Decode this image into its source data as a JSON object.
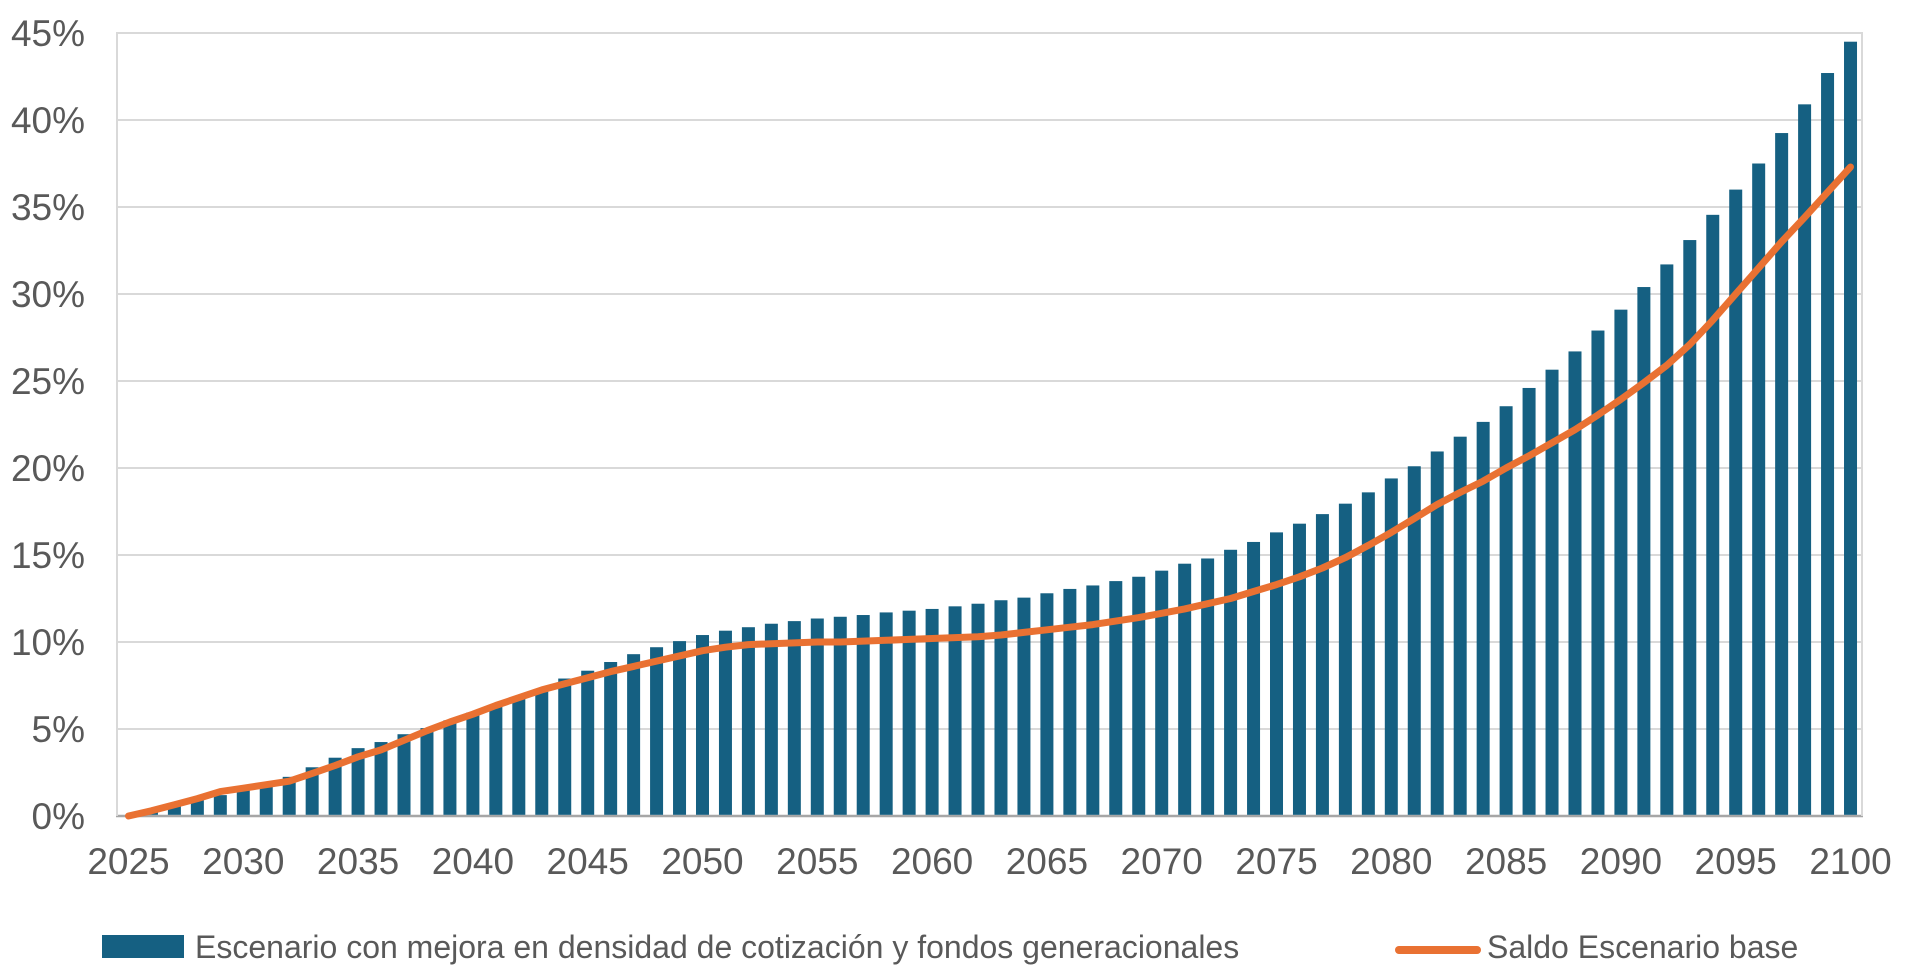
{
  "chart_data": {
    "type": "bar+line",
    "title": "",
    "xlabel": "",
    "ylabel": "",
    "years": [
      2025,
      2026,
      2027,
      2028,
      2029,
      2030,
      2031,
      2032,
      2033,
      2034,
      2035,
      2036,
      2037,
      2038,
      2039,
      2040,
      2041,
      2042,
      2043,
      2044,
      2045,
      2046,
      2047,
      2048,
      2049,
      2050,
      2051,
      2052,
      2053,
      2054,
      2055,
      2056,
      2057,
      2058,
      2059,
      2060,
      2061,
      2062,
      2063,
      2064,
      2065,
      2066,
      2067,
      2068,
      2069,
      2070,
      2071,
      2072,
      2073,
      2074,
      2075,
      2076,
      2077,
      2078,
      2079,
      2080,
      2081,
      2082,
      2083,
      2084,
      2085,
      2086,
      2087,
      2088,
      2089,
      2090,
      2091,
      2092,
      2093,
      2094,
      2095,
      2096,
      2097,
      2098,
      2099,
      2100
    ],
    "series": [
      {
        "name": "Escenario con mejora en densidad de cotización y fondos generacionales",
        "type": "bar",
        "color": "#156082",
        "values": [
          0,
          0.25,
          0.55,
          0.9,
          1.2,
          1.5,
          1.9,
          2.25,
          2.8,
          3.35,
          3.9,
          4.25,
          4.7,
          5.05,
          5.5,
          5.95,
          6.4,
          6.85,
          7.3,
          7.9,
          8.35,
          8.85,
          9.3,
          9.7,
          10.05,
          10.4,
          10.65,
          10.85,
          11.05,
          11.2,
          11.35,
          11.45,
          11.55,
          11.7,
          11.8,
          11.9,
          12.05,
          12.2,
          12.4,
          12.55,
          12.8,
          13.05,
          13.25,
          13.5,
          13.75,
          14.1,
          14.5,
          14.8,
          15.3,
          15.75,
          16.3,
          16.8,
          17.35,
          17.95,
          18.6,
          19.4,
          20.1,
          20.95,
          21.8,
          22.65,
          23.55,
          24.6,
          25.65,
          26.7,
          27.9,
          29.1,
          30.4,
          31.7,
          33.1,
          34.55,
          36.0,
          37.5,
          39.25,
          40.9,
          42.7,
          44.5
        ]
      },
      {
        "name": "Saldo Escenario base",
        "type": "line",
        "color": "#E97132",
        "values": [
          0,
          0.3,
          0.65,
          1.0,
          1.4,
          1.6,
          1.8,
          2.0,
          2.45,
          2.9,
          3.4,
          3.8,
          4.35,
          4.9,
          5.4,
          5.85,
          6.35,
          6.8,
          7.25,
          7.6,
          7.95,
          8.3,
          8.6,
          8.9,
          9.2,
          9.5,
          9.7,
          9.85,
          9.9,
          9.95,
          10.0,
          10.0,
          10.05,
          10.1,
          10.15,
          10.2,
          10.25,
          10.3,
          10.4,
          10.55,
          10.7,
          10.85,
          11.0,
          11.2,
          11.4,
          11.65,
          11.9,
          12.2,
          12.5,
          12.9,
          13.3,
          13.75,
          14.25,
          14.85,
          15.55,
          16.3,
          17.1,
          17.9,
          18.6,
          19.25,
          20.0,
          20.7,
          21.45,
          22.2,
          23.05,
          23.95,
          24.9,
          25.9,
          27.1,
          28.5,
          30.0,
          31.5,
          33.0,
          34.4,
          35.85,
          37.3
        ]
      }
    ],
    "ylim": [
      0,
      45
    ],
    "y_tick_step": 5,
    "y_tick_labels": [
      "0%",
      "5%",
      "10%",
      "15%",
      "20%",
      "25%",
      "30%",
      "35%",
      "40%",
      "45%"
    ],
    "x_tick_labels": [
      "2025",
      "2030",
      "2035",
      "2040",
      "2045",
      "2050",
      "2055",
      "2060",
      "2065",
      "2070",
      "2075",
      "2080",
      "2085",
      "2090",
      "2095",
      "2100"
    ],
    "grid": "horizontal",
    "legend_position": "bottom",
    "colors": {
      "text": "#595959",
      "gridline": "#D9D9D9",
      "axis_line": "#A6A6A6",
      "plot_border": "#D9D9D9",
      "background": "#FFFFFF"
    }
  }
}
